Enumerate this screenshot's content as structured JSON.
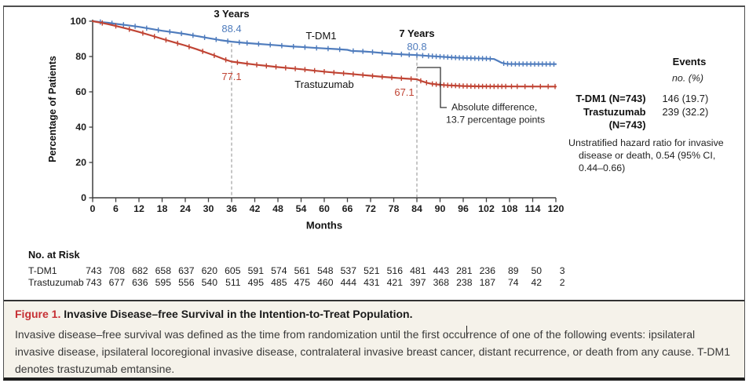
{
  "figure": {
    "caption_label": "Figure 1.",
    "caption_title": "Invasive Disease–free Survival in the Intention-to-Treat Population.",
    "caption_body": "Invasive disease–free survival was defined as the time from randomization until the first occurrence of one of the following events: ipsilateral invasive disease, ipsilateral locoregional invasive disease, contralateral invasive breast cancer, distant recurrence, or death from any cause. T-DM1 denotes trastuzumab emtansine."
  },
  "chart_data": {
    "type": "line",
    "subtype": "kaplan-meier",
    "title": "",
    "xlabel": "Months",
    "ylabel": "Percentage of Patients",
    "xlim": [
      0,
      120
    ],
    "xticks": [
      0,
      6,
      12,
      18,
      24,
      30,
      36,
      42,
      48,
      54,
      60,
      66,
      72,
      78,
      84,
      90,
      96,
      102,
      108,
      114,
      120
    ],
    "ylim": [
      0,
      100
    ],
    "yticks": [
      0,
      20,
      40,
      60,
      80,
      100
    ],
    "grid": false,
    "colors": {
      "axis": "#3f3f3f",
      "text": "#1e1e1e",
      "dashed_line": "#b3b3b3"
    },
    "series": [
      {
        "name": "T-DM1",
        "color": "#4f7cbd",
        "points": [
          [
            0,
            100
          ],
          [
            2,
            99.5
          ],
          [
            4,
            99.1
          ],
          [
            6,
            98.5
          ],
          [
            9,
            97.7
          ],
          [
            12,
            96.8
          ],
          [
            15,
            95.7
          ],
          [
            18,
            94.6
          ],
          [
            21,
            93.7
          ],
          [
            24,
            92.7
          ],
          [
            27,
            91.6
          ],
          [
            30,
            90.4
          ],
          [
            33,
            89.3
          ],
          [
            36,
            88.4
          ],
          [
            39,
            87.8
          ],
          [
            42,
            87.3
          ],
          [
            45,
            86.8
          ],
          [
            48,
            86.3
          ],
          [
            51,
            85.8
          ],
          [
            54,
            85.4
          ],
          [
            57,
            85.0
          ],
          [
            60,
            84.6
          ],
          [
            63,
            84.2
          ],
          [
            66,
            83.8
          ],
          [
            67,
            83.2
          ],
          [
            70,
            82.9
          ],
          [
            72,
            82.6
          ],
          [
            75,
            82.0
          ],
          [
            78,
            81.5
          ],
          [
            81,
            81.1
          ],
          [
            84,
            80.8
          ],
          [
            87,
            80.3
          ],
          [
            90,
            79.9
          ],
          [
            93,
            79.5
          ],
          [
            96,
            79.2
          ],
          [
            99,
            79.0
          ],
          [
            102,
            78.8
          ],
          [
            104,
            78.6
          ],
          [
            105,
            77.5
          ],
          [
            106,
            76.4
          ],
          [
            107,
            75.9
          ],
          [
            108,
            75.8
          ],
          [
            120,
            75.7
          ]
        ],
        "censor_ticks": [
          2,
          5,
          8,
          11,
          14,
          17,
          20,
          23,
          26,
          29,
          32,
          35,
          38,
          40,
          43,
          46,
          49,
          52,
          55,
          58,
          61,
          64,
          67.5,
          70,
          72.5,
          75,
          77.5,
          80,
          82,
          84,
          85.5,
          87,
          88,
          89,
          90,
          91,
          92,
          93,
          94,
          95,
          96,
          97,
          98,
          99,
          100,
          101,
          102,
          103,
          106.5,
          107.5,
          108.5,
          109.5,
          110.5,
          111.5,
          112.5,
          113.5,
          114.5,
          115.5,
          116.5,
          117.5,
          118.5,
          119.5
        ]
      },
      {
        "name": "Trastuzumab",
        "color": "#c04434",
        "points": [
          [
            0,
            100
          ],
          [
            2,
            99.2
          ],
          [
            4,
            98.3
          ],
          [
            6,
            97.3
          ],
          [
            9,
            95.7
          ],
          [
            12,
            93.9
          ],
          [
            15,
            92.0
          ],
          [
            18,
            90.0
          ],
          [
            21,
            88.1
          ],
          [
            24,
            86.2
          ],
          [
            27,
            84.1
          ],
          [
            30,
            81.8
          ],
          [
            32,
            80.2
          ],
          [
            34,
            78.5
          ],
          [
            36,
            77.1
          ],
          [
            39,
            76.2
          ],
          [
            42,
            75.4
          ],
          [
            45,
            74.7
          ],
          [
            48,
            74.0
          ],
          [
            51,
            73.4
          ],
          [
            54,
            72.8
          ],
          [
            57,
            72.1
          ],
          [
            60,
            71.4
          ],
          [
            63,
            70.8
          ],
          [
            66,
            70.3
          ],
          [
            69,
            69.7
          ],
          [
            72,
            69.1
          ],
          [
            75,
            68.5
          ],
          [
            78,
            68.0
          ],
          [
            81,
            67.5
          ],
          [
            84,
            67.1
          ],
          [
            85,
            66.2
          ],
          [
            86,
            65.5
          ],
          [
            87,
            64.9
          ],
          [
            88,
            64.5
          ],
          [
            90,
            64.0
          ],
          [
            92,
            63.7
          ],
          [
            94,
            63.5
          ],
          [
            96,
            63.3
          ],
          [
            100,
            63.1
          ],
          [
            120,
            63.0
          ]
        ],
        "censor_ticks": [
          2.5,
          6,
          9.5,
          13,
          16,
          19,
          22,
          25,
          28.5,
          31.5,
          34.5,
          37.5,
          40,
          42.5,
          45,
          47.5,
          50,
          52.5,
          55,
          57.5,
          60,
          62.5,
          65,
          67.5,
          70,
          72.5,
          75,
          77.5,
          80,
          82.5,
          85,
          86.5,
          88,
          89,
          90,
          91,
          92,
          93,
          94,
          95,
          96,
          97,
          98,
          99,
          100,
          101,
          102,
          103,
          104,
          105,
          106,
          107,
          108.5,
          110,
          112,
          114,
          116,
          118,
          119.8
        ]
      }
    ],
    "annotations": {
      "milestones": [
        {
          "label": "3 Years",
          "month": 36,
          "values": [
            {
              "series": "T-DM1",
              "value": "88.4"
            },
            {
              "series": "Trastuzumab",
              "value": "77.1"
            }
          ]
        },
        {
          "label": "7 Years",
          "month": 84,
          "values": [
            {
              "series": "T-DM1",
              "value": "80.8"
            },
            {
              "series": "Trastuzumab",
              "value": "67.1"
            }
          ]
        }
      ],
      "difference_note": [
        "Absolute difference,",
        "13.7 percentage points"
      ]
    },
    "events_panel": {
      "header": "Events",
      "subheader": "no. (%)",
      "rows": [
        {
          "label": "T-DM1 (N=743)",
          "value": "146 (19.7)"
        },
        {
          "label": "Trastuzumab",
          "value": "239 (32.2)"
        },
        {
          "label": "(N=743)",
          "value": ""
        }
      ],
      "hazard_lines": [
        "Unstratified hazard ratio for invasive",
        "disease or death, 0.54 (95% CI,",
        "0.44–0.66)"
      ]
    },
    "risk_table": {
      "title": "No. at Risk",
      "months": [
        0,
        6,
        12,
        18,
        24,
        30,
        36,
        42,
        48,
        54,
        60,
        66,
        72,
        78,
        84,
        90,
        96,
        102,
        108,
        114,
        120
      ],
      "rows": [
        {
          "label": "T-DM1",
          "values": [
            743,
            708,
            682,
            658,
            637,
            620,
            605,
            591,
            574,
            561,
            548,
            537,
            521,
            516,
            481,
            443,
            281,
            236,
            89,
            50,
            3
          ]
        },
        {
          "label": "Trastuzumab",
          "values": [
            743,
            677,
            636,
            595,
            556,
            540,
            511,
            495,
            485,
            475,
            460,
            444,
            431,
            421,
            397,
            368,
            238,
            187,
            74,
            42,
            2
          ]
        }
      ]
    }
  }
}
